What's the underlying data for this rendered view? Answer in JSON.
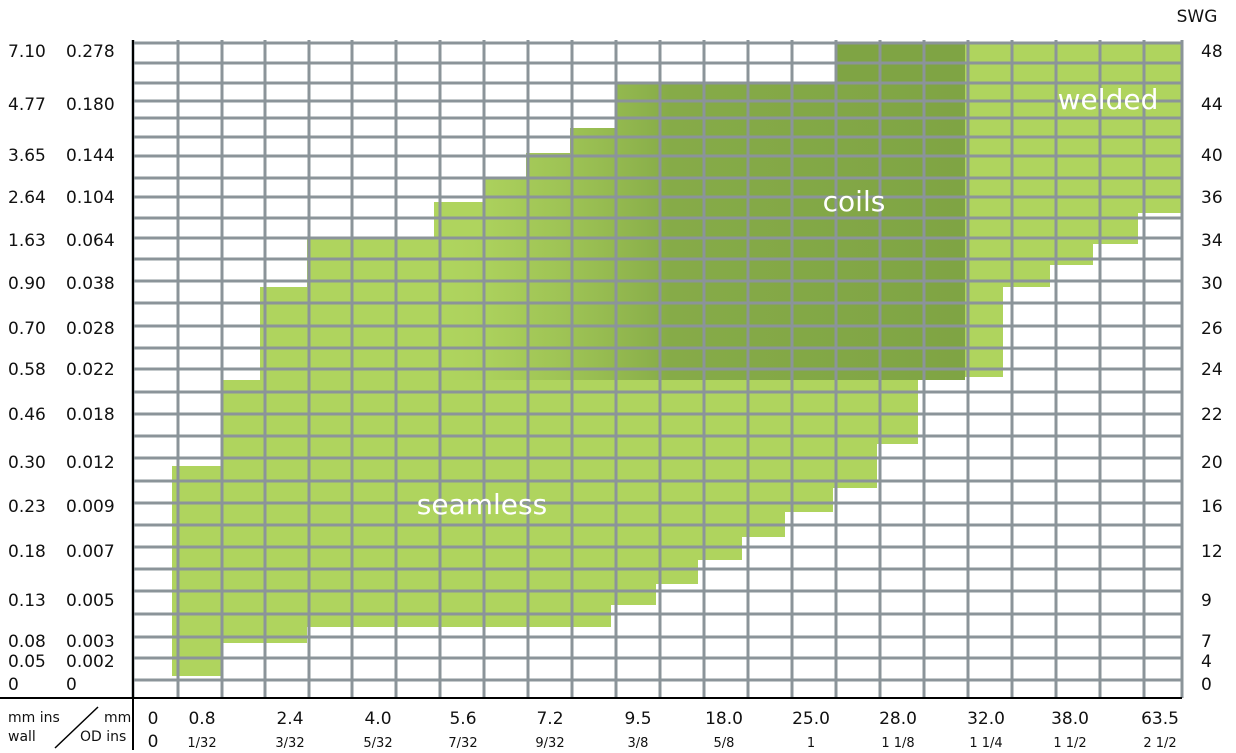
{
  "chart_data": {
    "type": "area",
    "title": "",
    "xlabel": "",
    "ylabel": "",
    "right_axis_title": "SWG",
    "corner_labels": {
      "top_left": "mm ins",
      "bottom_left": "wall",
      "top_right": "mm",
      "bottom_right": "OD ins"
    },
    "x_ticks": [
      {
        "mm": "0",
        "ins": "0"
      },
      {
        "mm": "0.8",
        "ins": "1/32"
      },
      {
        "mm": "2.4",
        "ins": "3/32"
      },
      {
        "mm": "4.0",
        "ins": "5/32"
      },
      {
        "mm": "5.6",
        "ins": "7/32"
      },
      {
        "mm": "7.2",
        "ins": "9/32"
      },
      {
        "mm": "9.5",
        "ins": "3/8"
      },
      {
        "mm": "18.0",
        "ins": "5/8"
      },
      {
        "mm": "25.0",
        "ins": "1"
      },
      {
        "mm": "28.0",
        "ins": "1 1/8"
      },
      {
        "mm": "32.0",
        "ins": "1 1/4"
      },
      {
        "mm": "38.0",
        "ins": "1 1/2"
      },
      {
        "mm": "63.5",
        "ins": "2 1/2"
      }
    ],
    "y_ticks": [
      {
        "mm": "7.10",
        "ins": "0.278",
        "swg": "48"
      },
      {
        "mm": "4.77",
        "ins": "0.180",
        "swg": "44"
      },
      {
        "mm": "3.65",
        "ins": "0.144",
        "swg": "40"
      },
      {
        "mm": "2.64",
        "ins": "0.104",
        "swg": "36"
      },
      {
        "mm": "1.63",
        "ins": "0.064",
        "swg": "34"
      },
      {
        "mm": "0.90",
        "ins": "0.038",
        "swg": "30"
      },
      {
        "mm": "0.70",
        "ins": "0.028",
        "swg": "26"
      },
      {
        "mm": "0.58",
        "ins": "0.022",
        "swg": "24"
      },
      {
        "mm": "0.46",
        "ins": "0.018",
        "swg": "22"
      },
      {
        "mm": "0.30",
        "ins": "0.012",
        "swg": "20"
      },
      {
        "mm": "0.23",
        "ins": "0.009",
        "swg": "16"
      },
      {
        "mm": "0.18",
        "ins": "0.007",
        "swg": "12"
      },
      {
        "mm": "0.13",
        "ins": "0.005",
        "swg": "9"
      },
      {
        "mm": "0.08",
        "ins": "0.003",
        "swg": "7"
      },
      {
        "mm": "0.05",
        "ins": "0.002",
        "swg": "4"
      },
      {
        "mm": "0",
        "ins": "0",
        "swg": "0"
      }
    ],
    "regions": [
      {
        "name": "seamless",
        "label": "seamless",
        "color": "#afd45e"
      },
      {
        "name": "welded",
        "label": "welded",
        "color": "#afd45e"
      },
      {
        "name": "coils",
        "label": "coils",
        "color": "#7fa444"
      }
    ],
    "grid": true,
    "colors": {
      "grid": "#8b9499",
      "axis": "#000000",
      "label_on_fill": "#ffffff"
    }
  }
}
